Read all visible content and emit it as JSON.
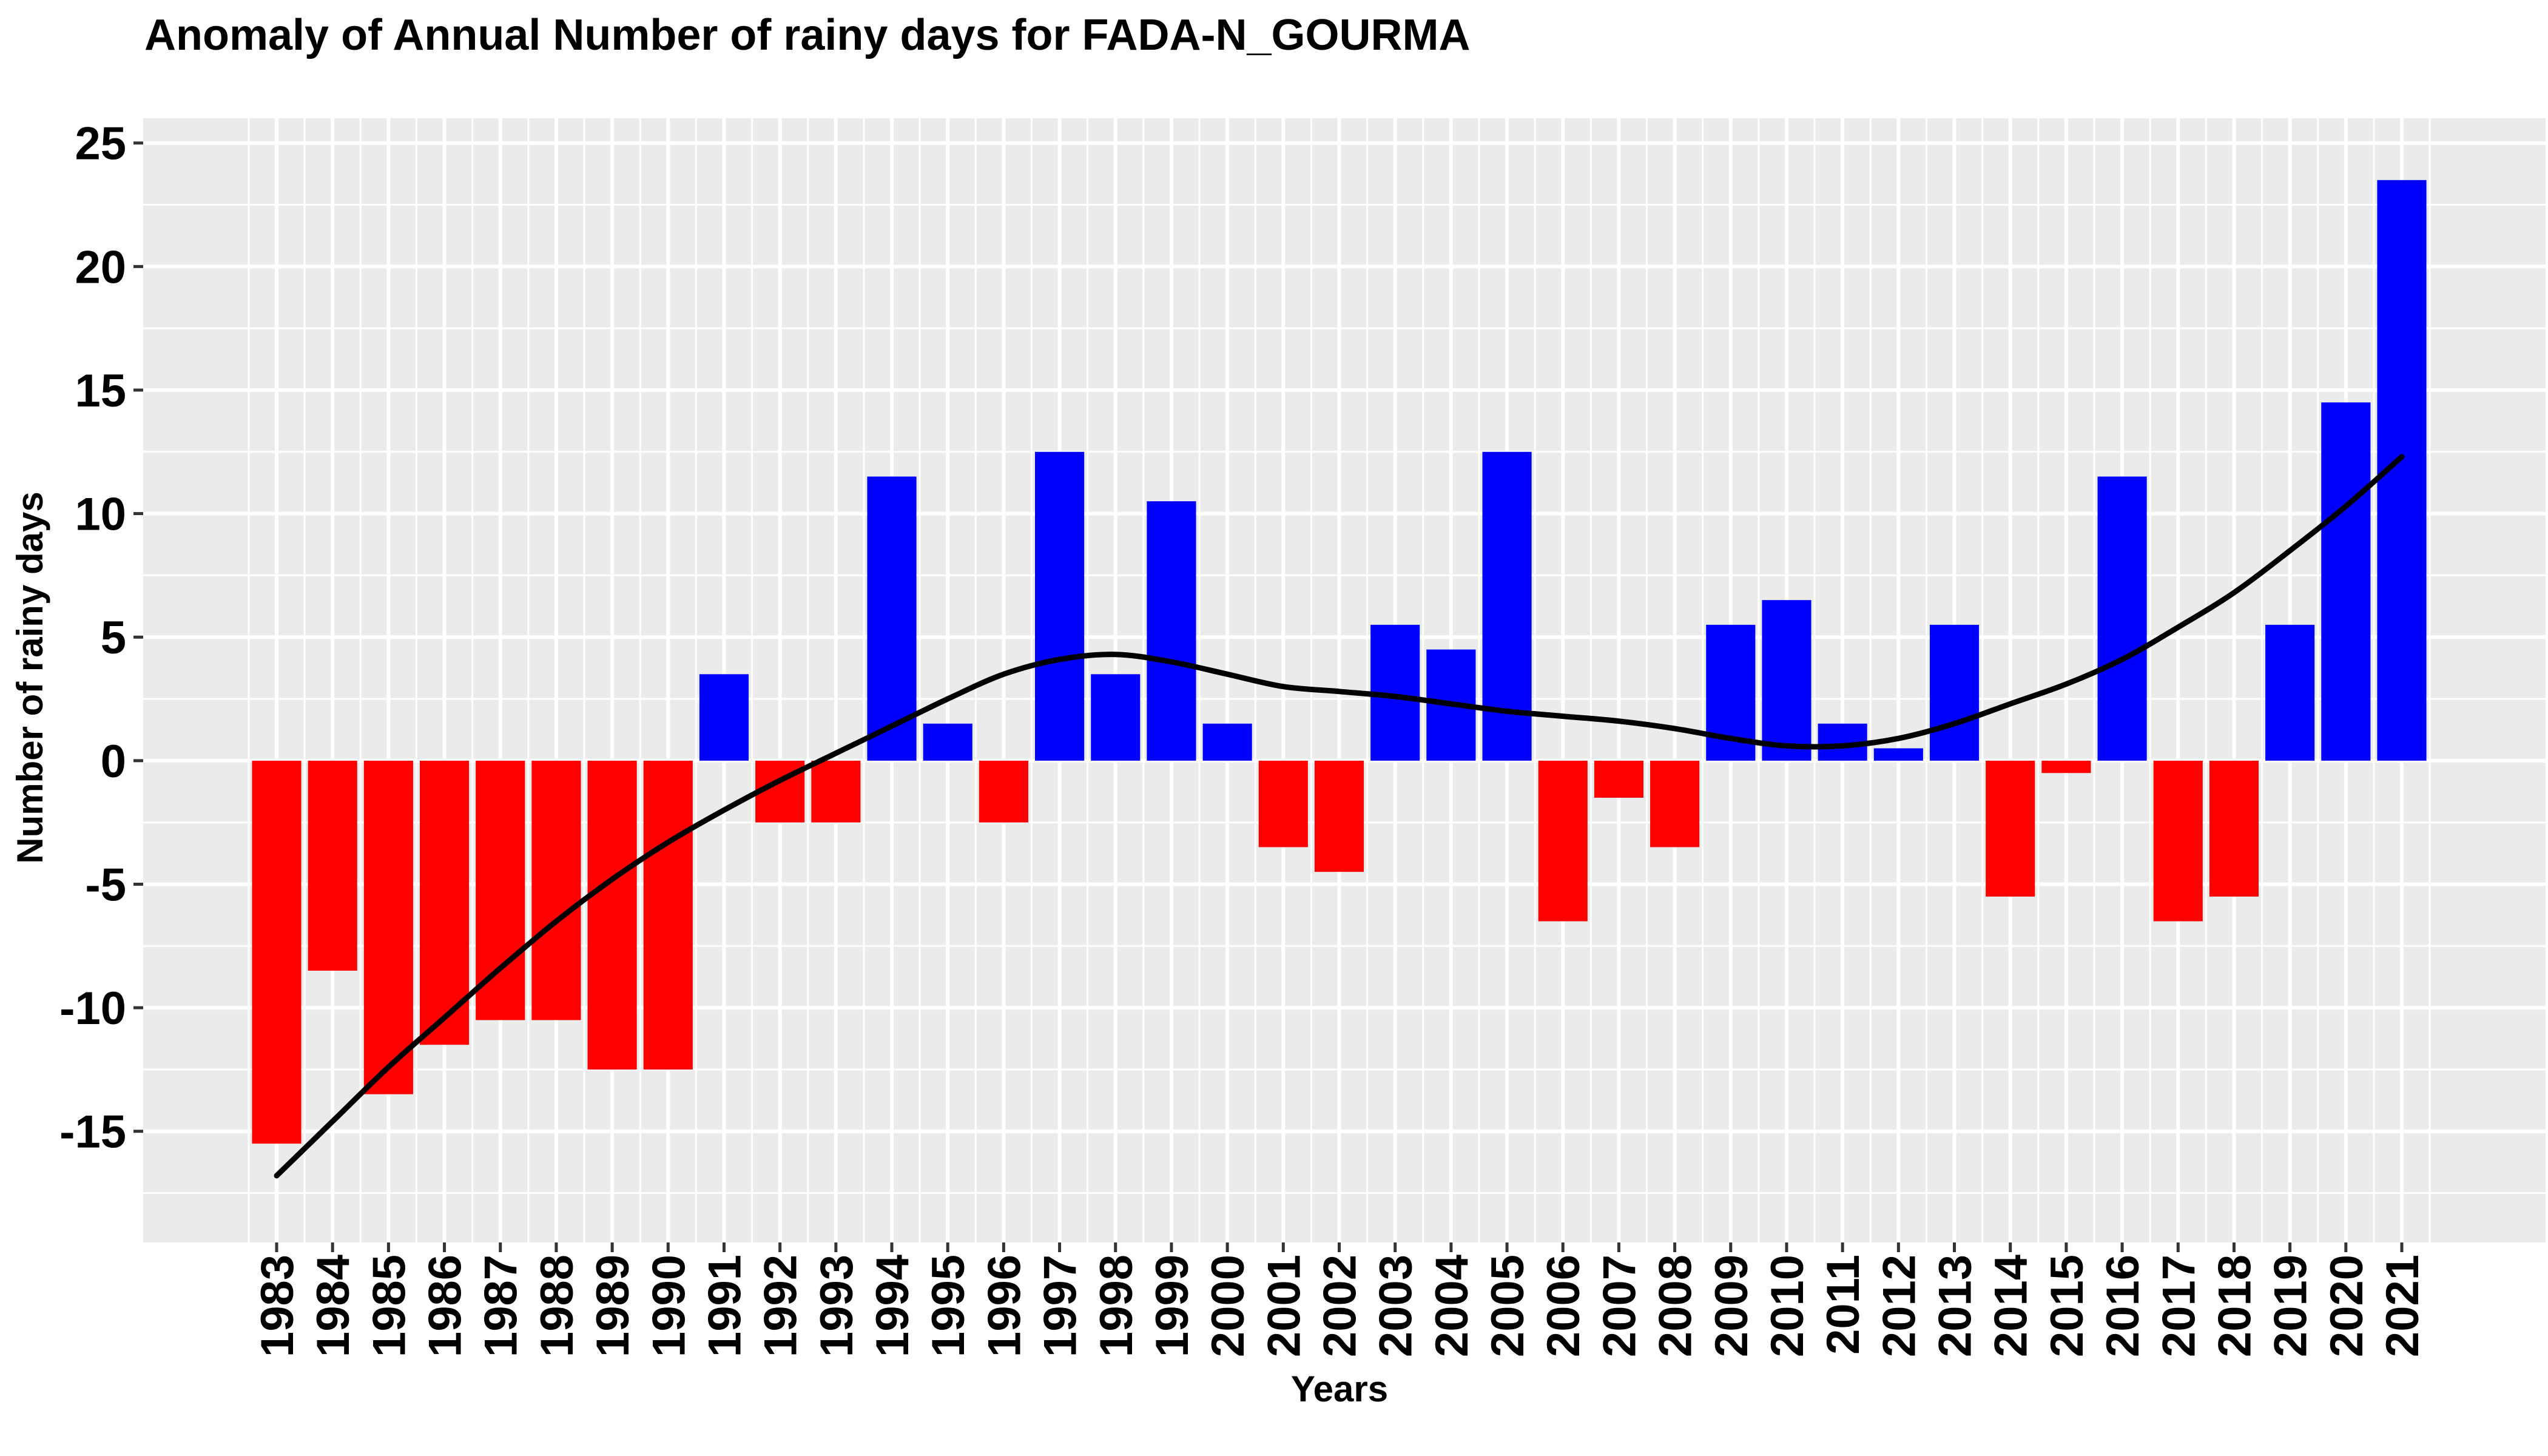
{
  "chart_data": {
    "type": "bar",
    "title": "Anomaly of Annual Number of rainy days for FADA-N_GOURMA",
    "xlabel": "Years",
    "ylabel": "Number of rainy days",
    "ylim": [
      -19.5,
      26
    ],
    "y_ticks": [
      25,
      20,
      15,
      10,
      5,
      0,
      -5,
      -10,
      -15
    ],
    "y_tick_labels": [
      "25",
      "20",
      "15",
      "10",
      "5",
      "0",
      "-5",
      "-10",
      "-15"
    ],
    "grid": true,
    "legend": "none",
    "categories": [
      "1983",
      "1984",
      "1985",
      "1986",
      "1987",
      "1988",
      "1989",
      "1990",
      "1991",
      "1992",
      "1993",
      "1994",
      "1995",
      "1996",
      "1997",
      "1998",
      "1999",
      "2000",
      "2001",
      "2002",
      "2003",
      "2004",
      "2005",
      "2006",
      "2007",
      "2008",
      "2009",
      "2010",
      "2011",
      "2012",
      "2013",
      "2014",
      "2015",
      "2016",
      "2017",
      "2018",
      "2019",
      "2020",
      "2021"
    ],
    "values": [
      -15.5,
      -8.5,
      -13.5,
      -11.5,
      -10.5,
      -10.5,
      -12.5,
      -12.5,
      3.5,
      -2.5,
      -2.5,
      11.5,
      1.5,
      -2.5,
      12.5,
      3.5,
      10.5,
      1.5,
      -3.5,
      -4.5,
      5.5,
      4.5,
      12.5,
      -6.5,
      -1.5,
      -3.5,
      5.5,
      6.5,
      1.5,
      0.5,
      5.5,
      -5.5,
      -0.5,
      11.5,
      -6.5,
      -5.5,
      5.5,
      14.5,
      23.5
    ],
    "positive_color": "#0000ff",
    "negative_color": "#ff0000",
    "trend_line": {
      "color": "#000000",
      "values": [
        -16.8,
        -14.6,
        -12.4,
        -10.4,
        -8.4,
        -6.5,
        -4.8,
        -3.3,
        -2.0,
        -0.8,
        0.3,
        1.4,
        2.5,
        3.5,
        4.1,
        4.3,
        4.0,
        3.5,
        3.0,
        2.8,
        2.6,
        2.3,
        2.0,
        1.8,
        1.6,
        1.3,
        0.9,
        0.6,
        0.6,
        0.9,
        1.5,
        2.3,
        3.1,
        4.1,
        5.4,
        6.8,
        8.5,
        10.3,
        12.3
      ]
    },
    "panel_background": "#ebebeb",
    "grid_color": "#ffffff"
  }
}
